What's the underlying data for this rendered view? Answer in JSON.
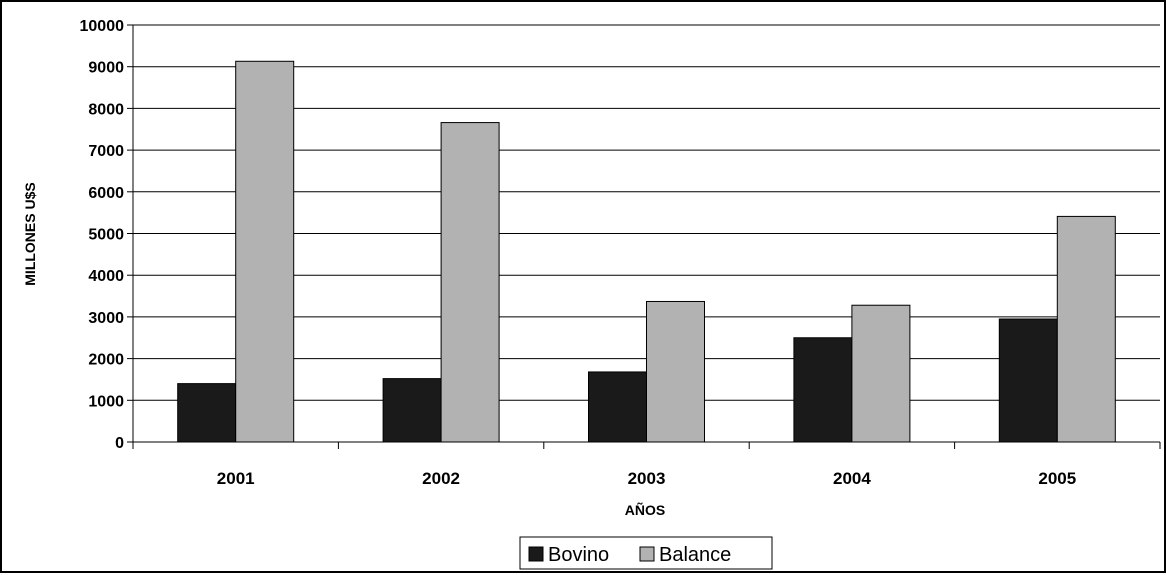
{
  "chart_data": {
    "type": "bar",
    "title": "",
    "xlabel": "AÑOS",
    "ylabel": "MILLONES U$S",
    "categories": [
      "2001",
      "2002",
      "2003",
      "2004",
      "2005"
    ],
    "series": [
      {
        "name": "Bovino",
        "color": "#1a1a1a",
        "values": [
          1400,
          1520,
          1680,
          2500,
          2950
        ]
      },
      {
        "name": "Balance",
        "color": "#b2b2b2",
        "values": [
          9130,
          7660,
          3370,
          3280,
          5410
        ]
      }
    ],
    "ylim": [
      0,
      10000
    ],
    "yticks": [
      "0",
      "1000",
      "2000",
      "3000",
      "4000",
      "5000",
      "6000",
      "7000",
      "8000",
      "9000",
      "10000"
    ],
    "grid": true,
    "legend_position": "bottom-center"
  }
}
